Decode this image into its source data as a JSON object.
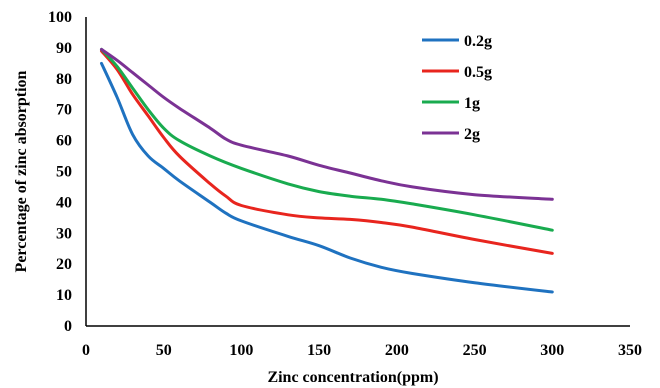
{
  "chart_data": {
    "type": "line",
    "title": "",
    "xlabel": "Zinc concentration(ppm)",
    "ylabel": "Percentage of zinc absorption",
    "xlim": [
      0,
      350
    ],
    "ylim": [
      0,
      100
    ],
    "x_ticks": [
      "0",
      "50",
      "100",
      "150",
      "200",
      "250",
      "300",
      "350"
    ],
    "y_ticks": [
      "0",
      "10",
      "20",
      "30",
      "40",
      "50",
      "60",
      "70",
      "80",
      "90",
      "100"
    ],
    "grid": false,
    "legend_position": "top-right",
    "series": [
      {
        "name": "0.2g",
        "color": "#1f72c0",
        "points": [
          [
            10,
            85
          ],
          [
            20,
            74
          ],
          [
            30,
            62
          ],
          [
            40,
            55
          ],
          [
            50,
            51
          ],
          [
            60,
            47
          ],
          [
            80,
            40
          ],
          [
            90,
            36.5
          ],
          [
            100,
            34
          ],
          [
            130,
            29
          ],
          [
            150,
            26
          ],
          [
            170,
            22
          ],
          [
            190,
            19
          ],
          [
            210,
            17
          ],
          [
            250,
            14
          ],
          [
            300,
            11
          ]
        ]
      },
      {
        "name": "0.5g",
        "color": "#e8251e",
        "points": [
          [
            10,
            89
          ],
          [
            20,
            83
          ],
          [
            30,
            75
          ],
          [
            40,
            68
          ],
          [
            50,
            61
          ],
          [
            60,
            55
          ],
          [
            80,
            46
          ],
          [
            90,
            42
          ],
          [
            100,
            39
          ],
          [
            130,
            36
          ],
          [
            150,
            35
          ],
          [
            170,
            34.5
          ],
          [
            190,
            33.5
          ],
          [
            210,
            32
          ],
          [
            250,
            28
          ],
          [
            300,
            23.5
          ]
        ]
      },
      {
        "name": "1g",
        "color": "#19ab4f",
        "points": [
          [
            10,
            89.5
          ],
          [
            20,
            84
          ],
          [
            30,
            77
          ],
          [
            40,
            70
          ],
          [
            50,
            64
          ],
          [
            60,
            60
          ],
          [
            80,
            55
          ],
          [
            100,
            51
          ],
          [
            130,
            46
          ],
          [
            150,
            43.5
          ],
          [
            170,
            42
          ],
          [
            190,
            41
          ],
          [
            210,
            39.5
          ],
          [
            250,
            36
          ],
          [
            300,
            31
          ]
        ]
      },
      {
        "name": "2g",
        "color": "#7b3294",
        "points": [
          [
            10,
            89.5
          ],
          [
            20,
            86
          ],
          [
            30,
            82
          ],
          [
            40,
            78
          ],
          [
            50,
            74
          ],
          [
            60,
            70.5
          ],
          [
            80,
            64
          ],
          [
            90,
            60.5
          ],
          [
            100,
            58.5
          ],
          [
            130,
            55
          ],
          [
            150,
            52
          ],
          [
            170,
            49.5
          ],
          [
            190,
            47
          ],
          [
            210,
            45
          ],
          [
            250,
            42.5
          ],
          [
            300,
            41
          ]
        ]
      }
    ]
  }
}
